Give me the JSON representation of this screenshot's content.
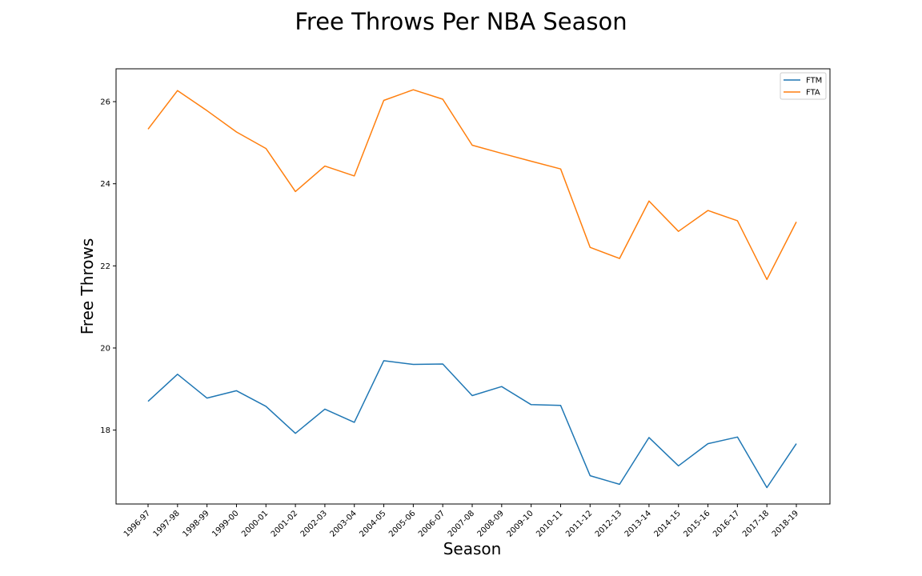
{
  "chart_data": {
    "type": "line",
    "title": "Free Throws Per NBA Season",
    "xlabel": "Season",
    "ylabel": "Free Throws",
    "categories": [
      "1996-97",
      "1997-98",
      "1998-99",
      "1999-00",
      "2000-01",
      "2001-02",
      "2002-03",
      "2003-04",
      "2004-05",
      "2005-06",
      "2006-07",
      "2007-08",
      "2008-09",
      "2009-10",
      "2010-11",
      "2011-12",
      "2012-13",
      "2013-14",
      "2014-15",
      "2015-16",
      "2016-17",
      "2017-18",
      "2018-19"
    ],
    "series": [
      {
        "name": "FTM",
        "color": "#1f77b4",
        "values": [
          18.7,
          19.36,
          18.78,
          18.96,
          18.58,
          17.92,
          18.51,
          18.19,
          19.69,
          19.6,
          19.61,
          18.84,
          19.06,
          18.62,
          18.6,
          16.89,
          16.68,
          17.82,
          17.13,
          17.67,
          17.83,
          16.6,
          17.67
        ]
      },
      {
        "name": "FTA",
        "color": "#ff7f0e",
        "values": [
          25.33,
          26.27,
          25.78,
          25.26,
          24.86,
          23.81,
          24.43,
          24.19,
          26.03,
          26.29,
          26.06,
          24.94,
          24.74,
          24.55,
          24.36,
          22.45,
          22.18,
          23.58,
          22.84,
          23.35,
          23.1,
          21.67,
          23.07
        ]
      }
    ],
    "yticks": [
      18,
      20,
      22,
      24,
      26
    ],
    "ylim": [
      16.2,
      26.8
    ],
    "grid": false,
    "legend_position": "top-right"
  }
}
